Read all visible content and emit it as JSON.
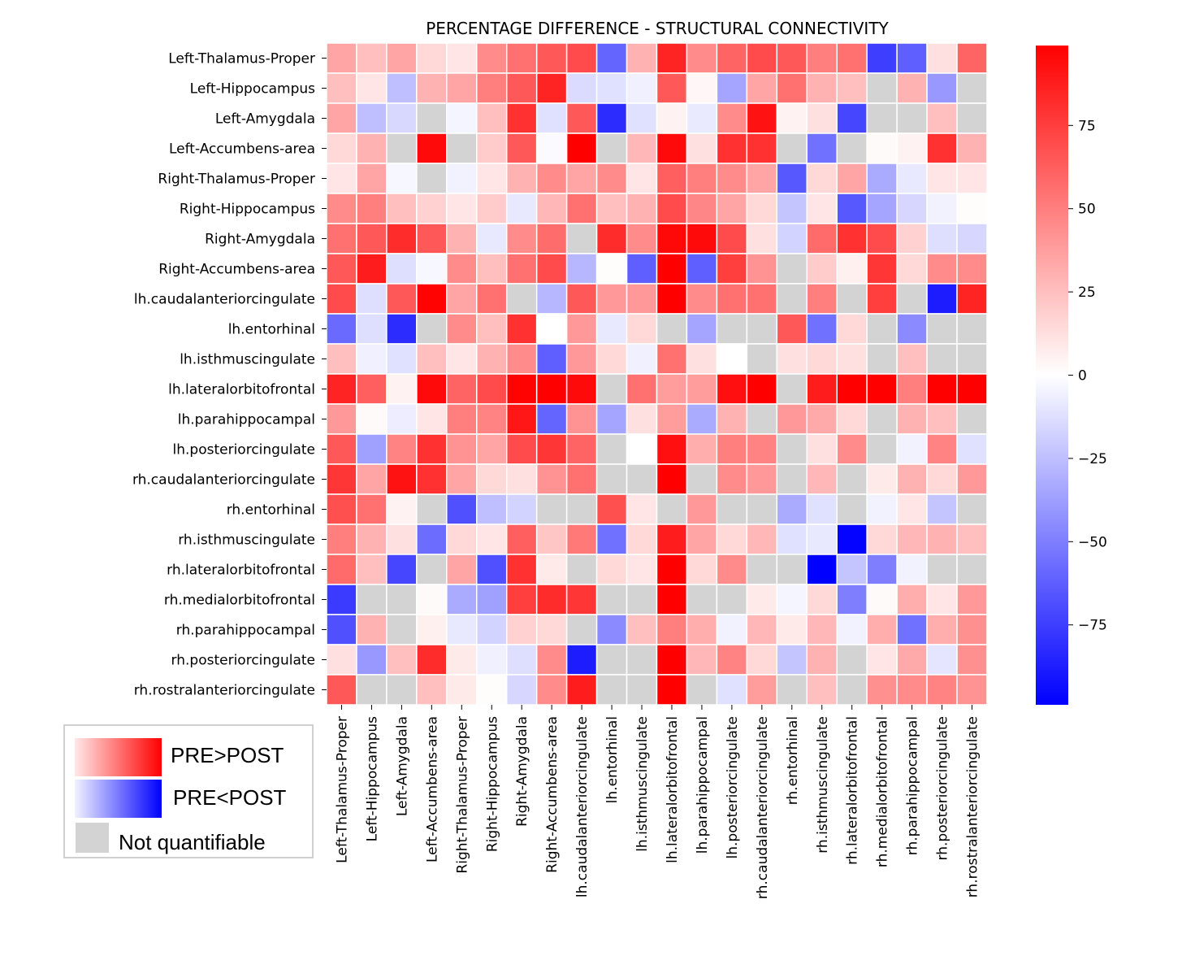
{
  "chart_data": {
    "type": "heatmap",
    "title": "PERCENTAGE DIFFERENCE - STRUCTURAL CONNECTIVITY",
    "xlabel": "",
    "ylabel": "",
    "labels": [
      "Left-Thalamus-Proper",
      "Left-Hippocampus",
      "Left-Amygdala",
      "Left-Accumbens-area",
      "Right-Thalamus-Proper",
      "Right-Hippocampus",
      "Right-Amygdala",
      "Right-Accumbens-area",
      "lh.caudalanteriorcingulate",
      "lh.entorhinal",
      "lh.isthmuscingulate",
      "lh.lateralorbitofrontal",
      "lh.parahippocampal",
      "lh.posteriorcingulate",
      "rh.caudalanteriorcingulate",
      "rh.entorhinal",
      "rh.isthmuscingulate",
      "rh.lateralorbitofrontal",
      "rh.medialorbitofrontal",
      "rh.parahippocampal",
      "rh.posteriorcingulate",
      "rh.rostralanteriorcingulate"
    ],
    "values": [
      [
        35,
        25,
        35,
        15,
        10,
        45,
        55,
        65,
        70,
        -60,
        30,
        85,
        45,
        60,
        70,
        65,
        50,
        55,
        -75,
        -62,
        12,
        60
      ],
      [
        25,
        10,
        -25,
        30,
        35,
        50,
        65,
        85,
        -14,
        -12,
        -6,
        65,
        3,
        -35,
        35,
        55,
        30,
        25,
        null,
        30,
        -40,
        null
      ],
      [
        35,
        -25,
        -15,
        null,
        -4,
        25,
        80,
        -12,
        65,
        -82,
        -12,
        5,
        -8,
        45,
        92,
        5,
        12,
        -72,
        null,
        null,
        25,
        null
      ],
      [
        15,
        30,
        null,
        95,
        null,
        20,
        65,
        -2,
        99,
        null,
        28,
        95,
        12,
        80,
        80,
        null,
        -55,
        null,
        2,
        5,
        80,
        30
      ],
      [
        10,
        35,
        -3,
        null,
        -5,
        10,
        30,
        45,
        35,
        45,
        10,
        62,
        50,
        45,
        35,
        -65,
        15,
        35,
        -33,
        -9,
        10,
        10
      ],
      [
        45,
        50,
        25,
        18,
        10,
        20,
        -9,
        28,
        55,
        25,
        30,
        70,
        47,
        35,
        15,
        -23,
        10,
        -65,
        -35,
        -16,
        -5,
        1
      ],
      [
        55,
        65,
        82,
        65,
        30,
        -9,
        45,
        57,
        null,
        82,
        45,
        96,
        95,
        70,
        12,
        -17,
        58,
        80,
        70,
        18,
        -13,
        -16
      ],
      [
        65,
        88,
        -13,
        -3,
        45,
        25,
        55,
        70,
        -28,
        1,
        -62,
        99,
        -62,
        75,
        42,
        null,
        20,
        6,
        78,
        15,
        45,
        45
      ],
      [
        70,
        -13,
        65,
        98,
        35,
        55,
        null,
        -28,
        65,
        40,
        40,
        99,
        45,
        55,
        55,
        null,
        50,
        null,
        75,
        null,
        -88,
        85
      ],
      [
        -58,
        -13,
        -82,
        null,
        45,
        25,
        80,
        0,
        40,
        -9,
        15,
        null,
        -35,
        null,
        null,
        65,
        -55,
        15,
        null,
        -45,
        null,
        null
      ],
      [
        25,
        -6,
        -12,
        25,
        10,
        30,
        45,
        -62,
        40,
        15,
        -6,
        55,
        12,
        0,
        null,
        12,
        15,
        12,
        null,
        25,
        null,
        null
      ],
      [
        85,
        62,
        5,
        95,
        60,
        70,
        98,
        99,
        95,
        null,
        55,
        38,
        38,
        93,
        99,
        null,
        88,
        99,
        99,
        50,
        99,
        99
      ],
      [
        40,
        2,
        -7,
        10,
        50,
        48,
        90,
        -60,
        42,
        -35,
        12,
        38,
        -33,
        30,
        null,
        40,
        33,
        15,
        null,
        30,
        25,
        null
      ],
      [
        65,
        -37,
        48,
        80,
        42,
        35,
        70,
        78,
        60,
        null,
        0,
        93,
        32,
        50,
        48,
        null,
        12,
        45,
        null,
        -5,
        48,
        -12
      ],
      [
        78,
        35,
        92,
        80,
        35,
        15,
        12,
        42,
        55,
        null,
        null,
        99,
        null,
        45,
        40,
        null,
        28,
        null,
        8,
        30,
        15,
        40
      ],
      [
        68,
        55,
        5,
        null,
        -68,
        -25,
        -17,
        null,
        null,
        68,
        10,
        null,
        40,
        null,
        null,
        -33,
        -12,
        null,
        -5,
        10,
        -23,
        null
      ],
      [
        50,
        30,
        12,
        -57,
        15,
        10,
        62,
        22,
        52,
        -55,
        15,
        88,
        35,
        15,
        28,
        -12,
        -9,
        -98,
        15,
        28,
        30,
        25
      ],
      [
        58,
        25,
        -72,
        null,
        35,
        -68,
        80,
        8,
        null,
        15,
        10,
        99,
        15,
        45,
        null,
        null,
        -99,
        -23,
        -50,
        -5,
        null,
        null
      ],
      [
        -76,
        null,
        null,
        2,
        -33,
        -37,
        75,
        82,
        78,
        null,
        null,
        99,
        null,
        null,
        8,
        -4,
        15,
        -50,
        2,
        32,
        10,
        40
      ],
      [
        -68,
        30,
        null,
        6,
        -9,
        -17,
        18,
        15,
        null,
        -45,
        25,
        50,
        32,
        -5,
        28,
        8,
        28,
        -5,
        32,
        -55,
        32,
        43
      ],
      [
        12,
        -40,
        25,
        82,
        8,
        -6,
        -13,
        45,
        -88,
        null,
        null,
        99,
        28,
        48,
        15,
        -23,
        30,
        null,
        10,
        33,
        -10,
        43
      ],
      [
        65,
        null,
        null,
        25,
        8,
        1,
        -16,
        45,
        88,
        null,
        null,
        99,
        null,
        -12,
        38,
        null,
        25,
        null,
        43,
        45,
        48,
        42
      ]
    ],
    "vmin": -99,
    "vmax": 99,
    "colormap": "bwr",
    "missing_color": "#d3d3d3",
    "colorbar": {
      "ticks": [
        75,
        50,
        25,
        0,
        -25,
        -50,
        -75
      ],
      "tick_labels": [
        "75",
        "50",
        "25",
        "0",
        "−25",
        "−50",
        "−75"
      ]
    }
  },
  "legend": {
    "placement": "bottom-left",
    "items": [
      {
        "label": "PRE>POST",
        "color": "#ff0000"
      },
      {
        "label": "PRE<POST",
        "color": "#0000ff"
      },
      {
        "label": "Not quantifiable",
        "color": "#d3d3d3"
      }
    ]
  }
}
